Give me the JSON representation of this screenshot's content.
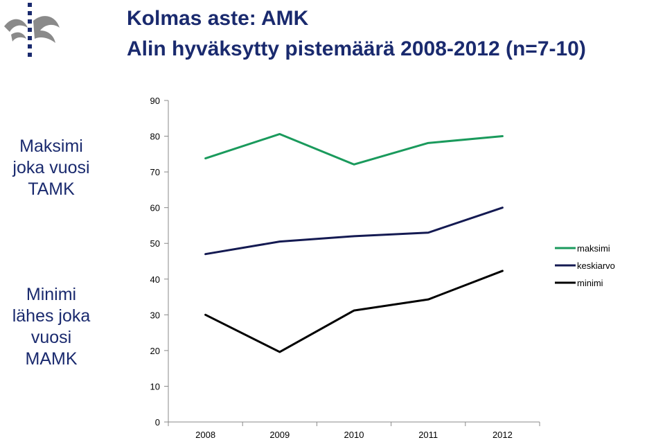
{
  "title_line1": "Kolmas aste: AMK",
  "title_line2": "Alin hyväksytty pistemäärä 2008-2012 (n=7-10)",
  "side_label_top": "Maksimi joka vuosi TAMK",
  "side_label_bottom": "Minimi lähes joka vuosi MAMK",
  "colors": {
    "title": "#1a2a6e",
    "maksimi": "#1a9a5c",
    "keskiarvo": "#141a52",
    "minimi": "#000000"
  },
  "logo_icon": "flame-logo-icon",
  "chart_data": {
    "type": "line",
    "categories": [
      "2008",
      "2009",
      "2010",
      "2011",
      "2012"
    ],
    "series": [
      {
        "name": "maksimi",
        "values": [
          73.8,
          80.6,
          72.1,
          78.1,
          80.0
        ]
      },
      {
        "name": "keskiarvo",
        "values": [
          47.0,
          50.5,
          52.0,
          53.0,
          60.0
        ]
      },
      {
        "name": "minimi",
        "values": [
          30.0,
          19.6,
          31.2,
          34.3,
          42.3
        ]
      }
    ],
    "yticks": [
      "0",
      "10",
      "20",
      "30",
      "40",
      "50",
      "60",
      "70",
      "80",
      "90"
    ],
    "ylim": [
      0,
      90
    ],
    "grid": false,
    "legend_position": "right"
  }
}
